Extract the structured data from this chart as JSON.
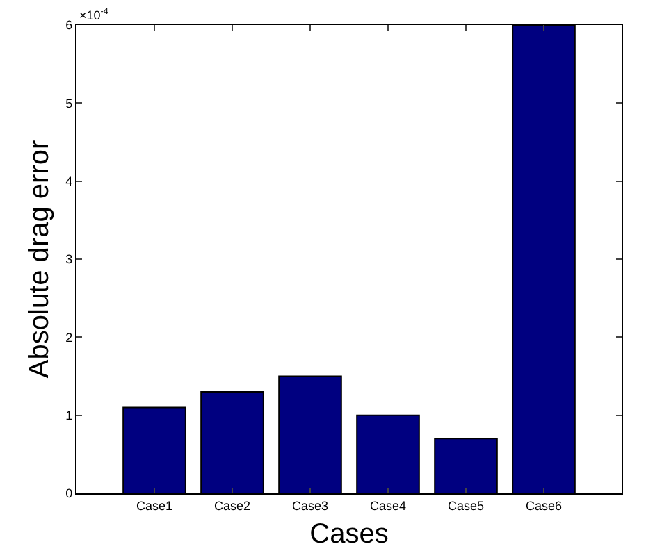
{
  "chart_data": {
    "type": "bar",
    "xlabel": "Cases",
    "ylabel": "Absolute drag error",
    "categories": [
      "Case1",
      "Case2",
      "Case3",
      "Case4",
      "Case5",
      "Case6"
    ],
    "values": [
      1.1,
      1.3,
      1.5,
      1.0,
      0.7,
      6.0
    ],
    "color": "#000080",
    "ylim": [
      0,
      6
    ],
    "yticks": [
      0,
      1,
      2,
      3,
      4,
      5,
      6
    ],
    "annotations": [
      "×10$^{-4}$"
    ]
  }
}
